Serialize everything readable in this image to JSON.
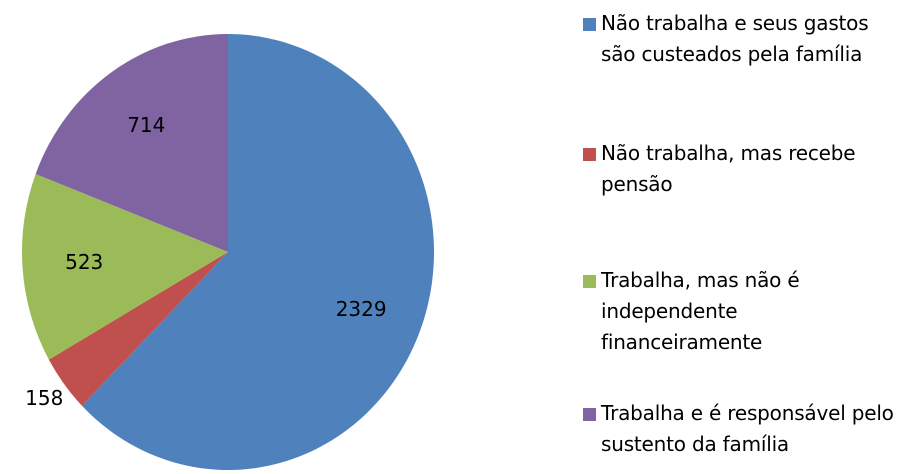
{
  "chart_data": {
    "type": "pie",
    "categories": [
      "Não trabalha e seus gastos são custeados pela família",
      "Não trabalha, mas recebe pensão",
      "Trabalha, mas não é independente financeiramente",
      "Trabalha e é responsável pelo sustento da família"
    ],
    "values": [
      2329,
      158,
      523,
      714
    ],
    "colors": [
      "#4f81bd",
      "#c0504d",
      "#9bbb59",
      "#8064a2"
    ],
    "legend": "right"
  }
}
